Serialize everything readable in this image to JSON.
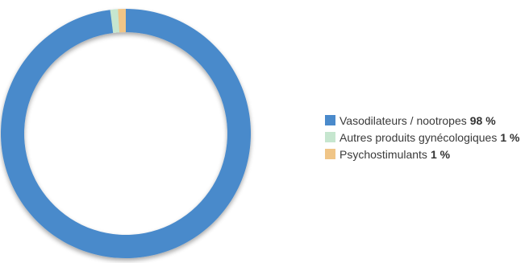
{
  "chart_data": {
    "type": "pie",
    "variant": "donut",
    "title": "",
    "slices": [
      {
        "label": "Vasodilateurs / nootropes",
        "value": 98,
        "value_label": "98 %",
        "color": "#4a8acb"
      },
      {
        "label": "Autres produits gynécologiques",
        "value": 1,
        "value_label": "1 %",
        "color": "#c6e6cf"
      },
      {
        "label": "Psychostimulants",
        "value": 1,
        "value_label": "1 %",
        "color": "#f0c587"
      }
    ],
    "legend_position": "right"
  }
}
